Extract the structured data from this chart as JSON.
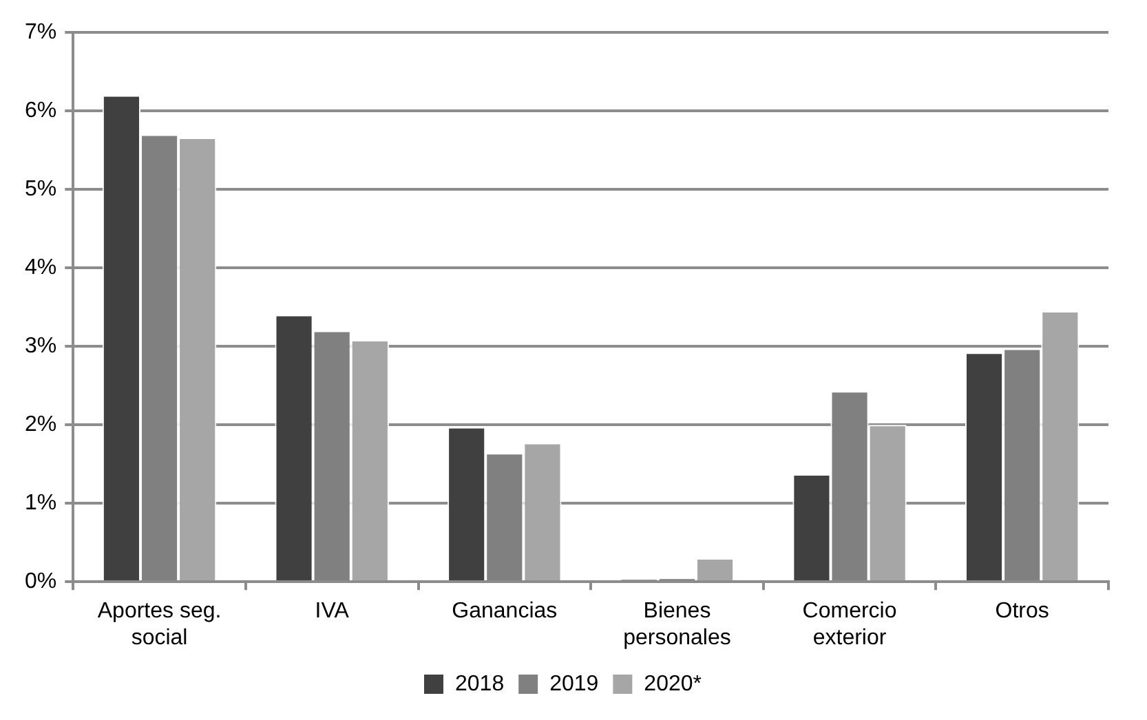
{
  "chart_data": {
    "type": "bar",
    "categories": [
      "Aportes seg. social",
      "IVA",
      "Ganancias",
      "Bienes personales",
      "Comercio exterior",
      "Otros"
    ],
    "series": [
      {
        "name": "2018",
        "color": "#404040",
        "values": [
          6.2,
          3.4,
          1.97,
          0.03,
          1.37,
          2.92
        ]
      },
      {
        "name": "2019",
        "color": "#808080",
        "values": [
          5.7,
          3.2,
          1.64,
          0.05,
          2.43,
          2.97
        ]
      },
      {
        "name": "2020*",
        "color": "#a6a6a6",
        "values": [
          5.66,
          3.08,
          1.77,
          0.3,
          2.0,
          3.45
        ]
      }
    ],
    "ylim": [
      0,
      7
    ],
    "yticks": [
      {
        "value": 0,
        "label": "0%"
      },
      {
        "value": 1,
        "label": "1%"
      },
      {
        "value": 2,
        "label": "2%"
      },
      {
        "value": 3,
        "label": "3%"
      },
      {
        "value": 4,
        "label": "4%"
      },
      {
        "value": 5,
        "label": "5%"
      },
      {
        "value": 6,
        "label": "6%"
      },
      {
        "value": 7,
        "label": "7%"
      }
    ],
    "grid": "y",
    "legend": "bottom"
  }
}
